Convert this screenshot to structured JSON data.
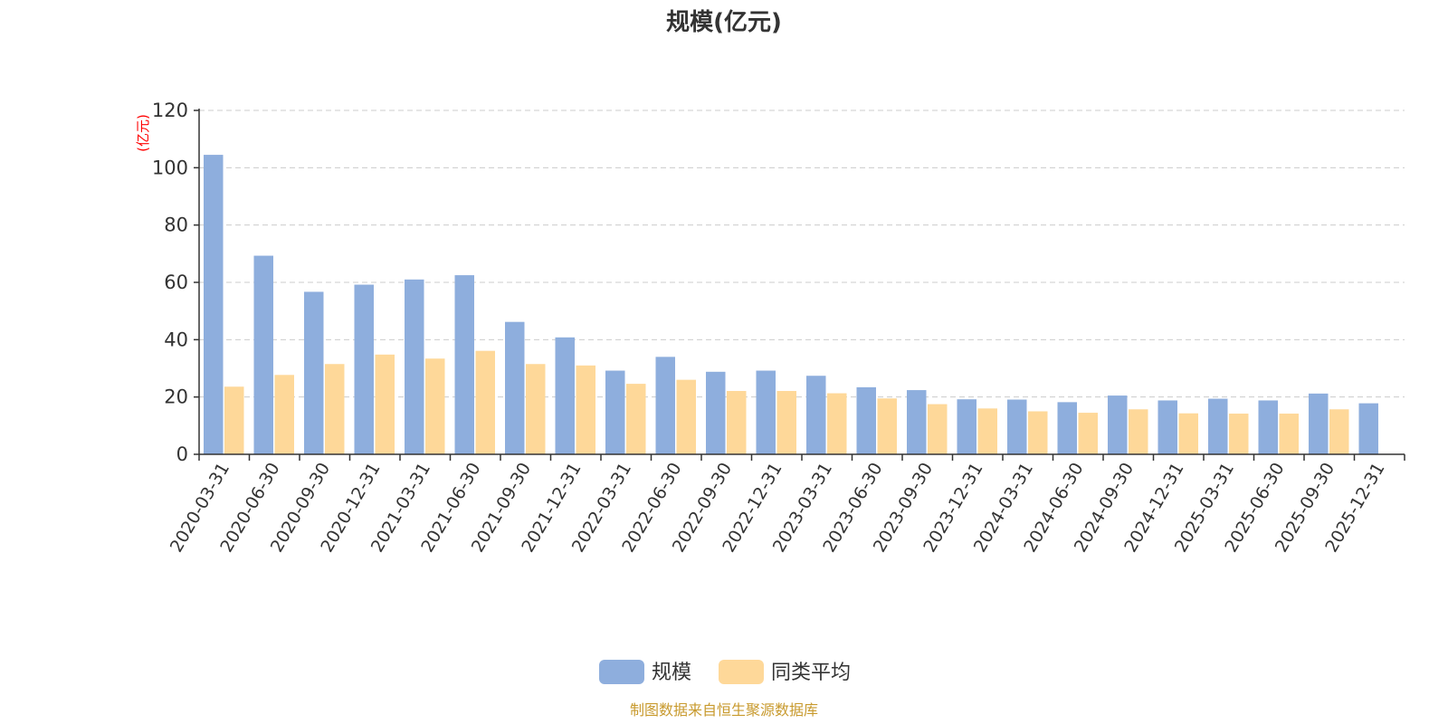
{
  "chart_data": {
    "type": "bar",
    "title": "规模(亿元)",
    "ylabel": "(亿元)",
    "ylim": [
      0,
      120
    ],
    "yticks": [
      0,
      20,
      40,
      60,
      80,
      100,
      120
    ],
    "grid": true,
    "legend_position": "bottom-center",
    "categories": [
      "2020-03-31",
      "2020-06-30",
      "2020-09-30",
      "2020-12-31",
      "2021-03-31",
      "2021-06-30",
      "2021-09-30",
      "2021-12-31",
      "2022-03-31",
      "2022-06-30",
      "2022-09-30",
      "2022-12-31",
      "2023-03-31",
      "2023-06-30",
      "2023-09-30",
      "2023-12-31",
      "2024-03-31",
      "2024-06-30",
      "2024-09-30",
      "2024-12-31",
      "2025-03-31",
      "2025-06-30",
      "2025-09-30",
      "2025-12-31"
    ],
    "series": [
      {
        "name": "规模",
        "color": "#8eaedd",
        "values": [
          104.5,
          69.3,
          56.7,
          59.2,
          61.0,
          62.5,
          46.2,
          40.8,
          29.2,
          34.0,
          28.8,
          29.2,
          27.4,
          23.4,
          22.4,
          19.2,
          19.1,
          18.2,
          20.5,
          18.8,
          19.4,
          18.8,
          21.2,
          17.8
        ]
      },
      {
        "name": "同类平均",
        "color": "#fed899",
        "values": [
          23.6,
          27.7,
          31.5,
          34.8,
          33.4,
          36.1,
          31.5,
          31.0,
          24.6,
          26.0,
          22.1,
          22.1,
          21.3,
          19.5,
          17.5,
          16.0,
          15.0,
          14.5,
          15.7,
          14.3,
          14.2,
          14.2,
          15.7,
          null
        ]
      }
    ]
  },
  "colors": {
    "axis": "#333333",
    "grid": "#cccccc",
    "unit_label": "#ff0000",
    "source": "#c89a2e"
  },
  "source_text": "制图数据来自恒生聚源数据库"
}
